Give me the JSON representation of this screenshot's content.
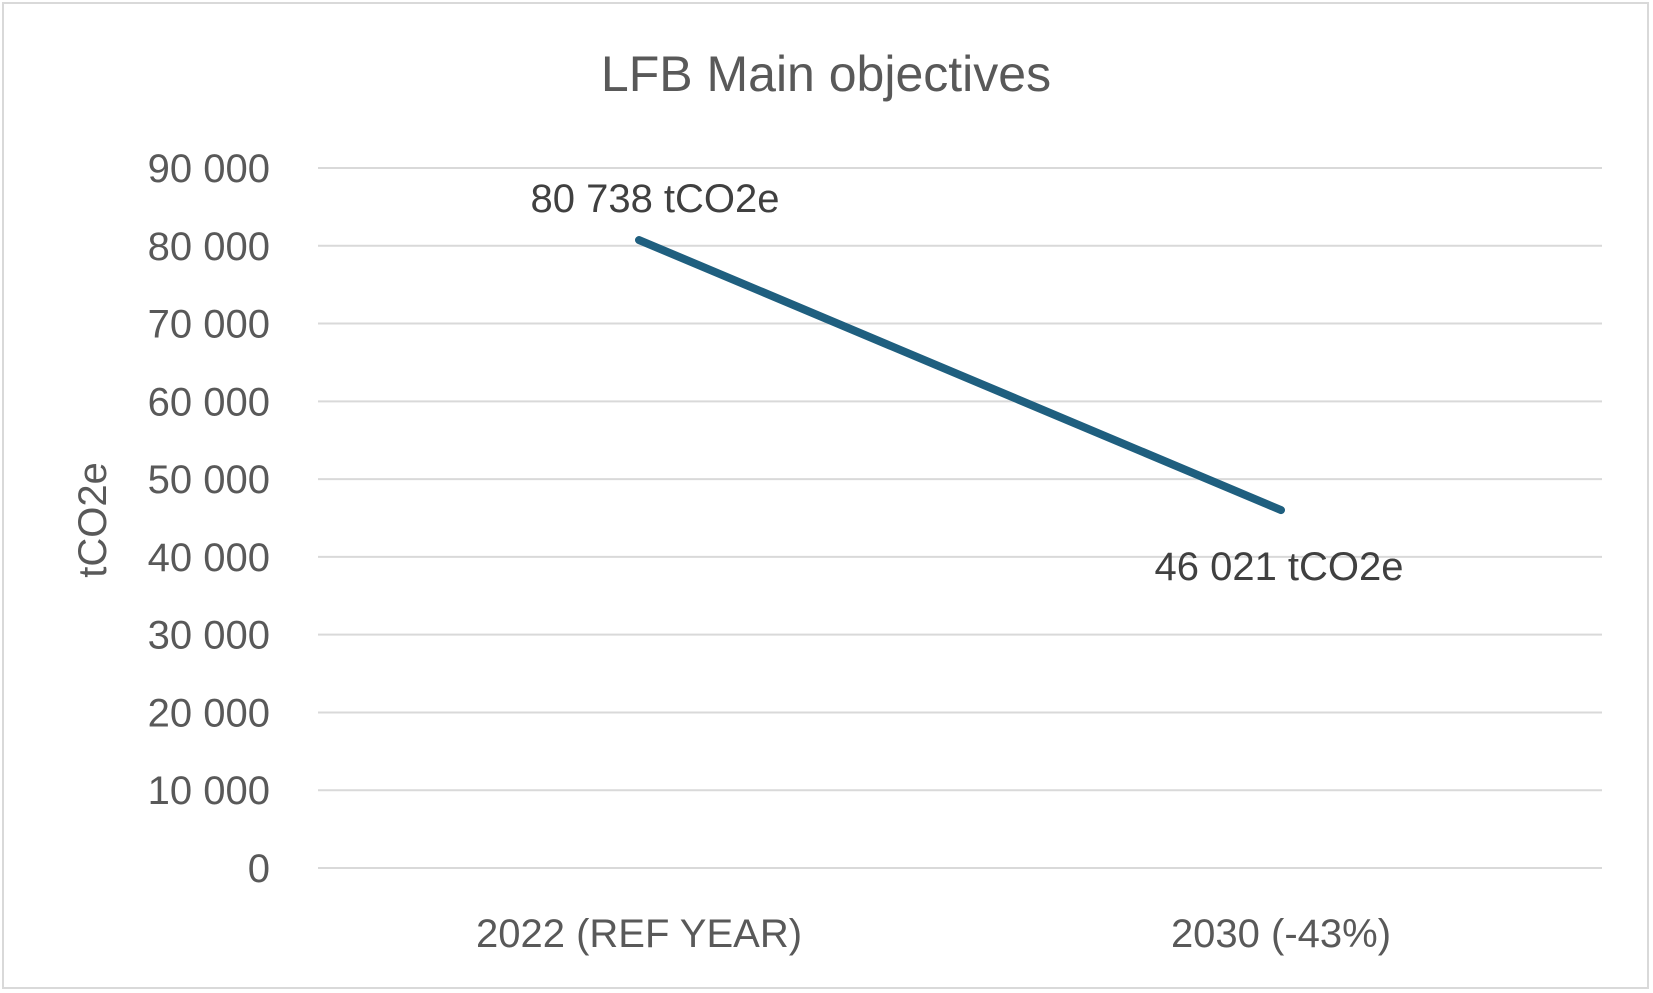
{
  "chart_data": {
    "type": "line",
    "title": "LFB Main objectives",
    "xlabel": "",
    "ylabel": "tCO2e",
    "categories": [
      "2022 (REF YEAR)",
      "2030 (-43%)"
    ],
    "series": [
      {
        "values": [
          80738,
          46021
        ],
        "color": "#1f5f7f",
        "data_labels": [
          "80 738 tCO2e",
          "46 021  tCO2e"
        ]
      }
    ],
    "ylim": [
      0,
      90000
    ],
    "yticks": [
      0,
      10000,
      20000,
      30000,
      40000,
      50000,
      60000,
      70000,
      80000,
      90000
    ],
    "ytick_labels": [
      "0",
      "10 000",
      "20 000",
      "30 000",
      "40 000",
      "50 000",
      "60 000",
      "70 000",
      "80 000",
      "90 000"
    ],
    "grid": true,
    "legend": "none",
    "colors": {
      "gridline": "#d9d9d9",
      "text": "#595959",
      "data_label": "#404040",
      "border": "#d9d9d9"
    }
  }
}
